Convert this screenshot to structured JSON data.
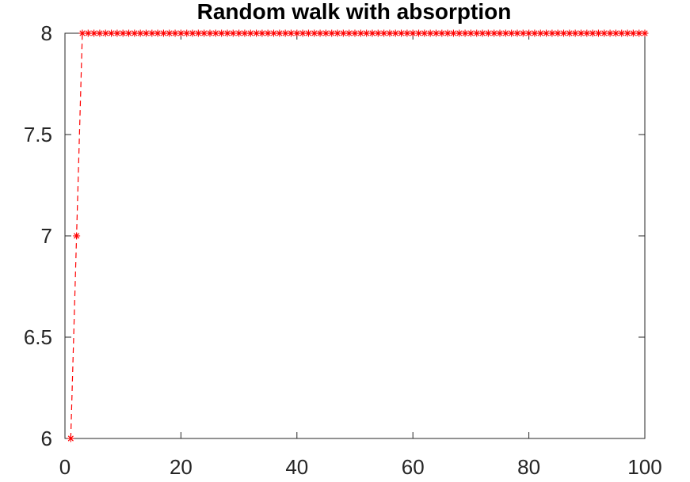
{
  "chart_data": {
    "type": "line",
    "title": "Random walk with absorption",
    "xlabel": "",
    "ylabel": "",
    "xlim": [
      0,
      100
    ],
    "ylim": [
      6,
      8
    ],
    "xticks": [
      0,
      20,
      40,
      60,
      80,
      100
    ],
    "yticks": [
      6,
      6.5,
      7,
      7.5,
      8
    ],
    "xtick_labels": [
      "0",
      "20",
      "40",
      "60",
      "80",
      "100"
    ],
    "ytick_labels": [
      "6",
      "6.5",
      "7",
      "7.5",
      "8"
    ],
    "grid": false,
    "series": [
      {
        "color": "#ff0000",
        "line_style": "dashed",
        "marker": "asterisk",
        "x": [
          1,
          2,
          3,
          4,
          5,
          6,
          7,
          8,
          9,
          10,
          11,
          12,
          13,
          14,
          15,
          16,
          17,
          18,
          19,
          20,
          21,
          22,
          23,
          24,
          25,
          26,
          27,
          28,
          29,
          30,
          31,
          32,
          33,
          34,
          35,
          36,
          37,
          38,
          39,
          40,
          41,
          42,
          43,
          44,
          45,
          46,
          47,
          48,
          49,
          50,
          51,
          52,
          53,
          54,
          55,
          56,
          57,
          58,
          59,
          60,
          61,
          62,
          63,
          64,
          65,
          66,
          67,
          68,
          69,
          70,
          71,
          72,
          73,
          74,
          75,
          76,
          77,
          78,
          79,
          80,
          81,
          82,
          83,
          84,
          85,
          86,
          87,
          88,
          89,
          90,
          91,
          92,
          93,
          94,
          95,
          96,
          97,
          98,
          99,
          100
        ],
        "y": [
          6,
          7,
          8,
          8,
          8,
          8,
          8,
          8,
          8,
          8,
          8,
          8,
          8,
          8,
          8,
          8,
          8,
          8,
          8,
          8,
          8,
          8,
          8,
          8,
          8,
          8,
          8,
          8,
          8,
          8,
          8,
          8,
          8,
          8,
          8,
          8,
          8,
          8,
          8,
          8,
          8,
          8,
          8,
          8,
          8,
          8,
          8,
          8,
          8,
          8,
          8,
          8,
          8,
          8,
          8,
          8,
          8,
          8,
          8,
          8,
          8,
          8,
          8,
          8,
          8,
          8,
          8,
          8,
          8,
          8,
          8,
          8,
          8,
          8,
          8,
          8,
          8,
          8,
          8,
          8,
          8,
          8,
          8,
          8,
          8,
          8,
          8,
          8,
          8,
          8,
          8,
          8,
          8,
          8,
          8,
          8,
          8,
          8,
          8,
          8
        ]
      }
    ]
  }
}
